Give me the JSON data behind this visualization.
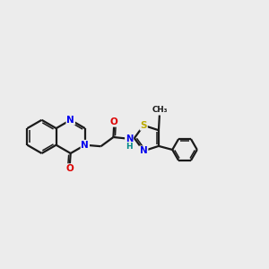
{
  "bg": "#ececec",
  "bc": "#1a1a1a",
  "N_color": "#0000ee",
  "O_color": "#dd0000",
  "S_color": "#bbaa00",
  "C_color": "#1a1a1a",
  "NH_color": "#008888",
  "lw": 1.6,
  "lw2": 1.1,
  "doff": 0.07,
  "fs": 7.5,
  "xlim": [
    0,
    10
  ],
  "ylim": [
    2.5,
    7.5
  ]
}
